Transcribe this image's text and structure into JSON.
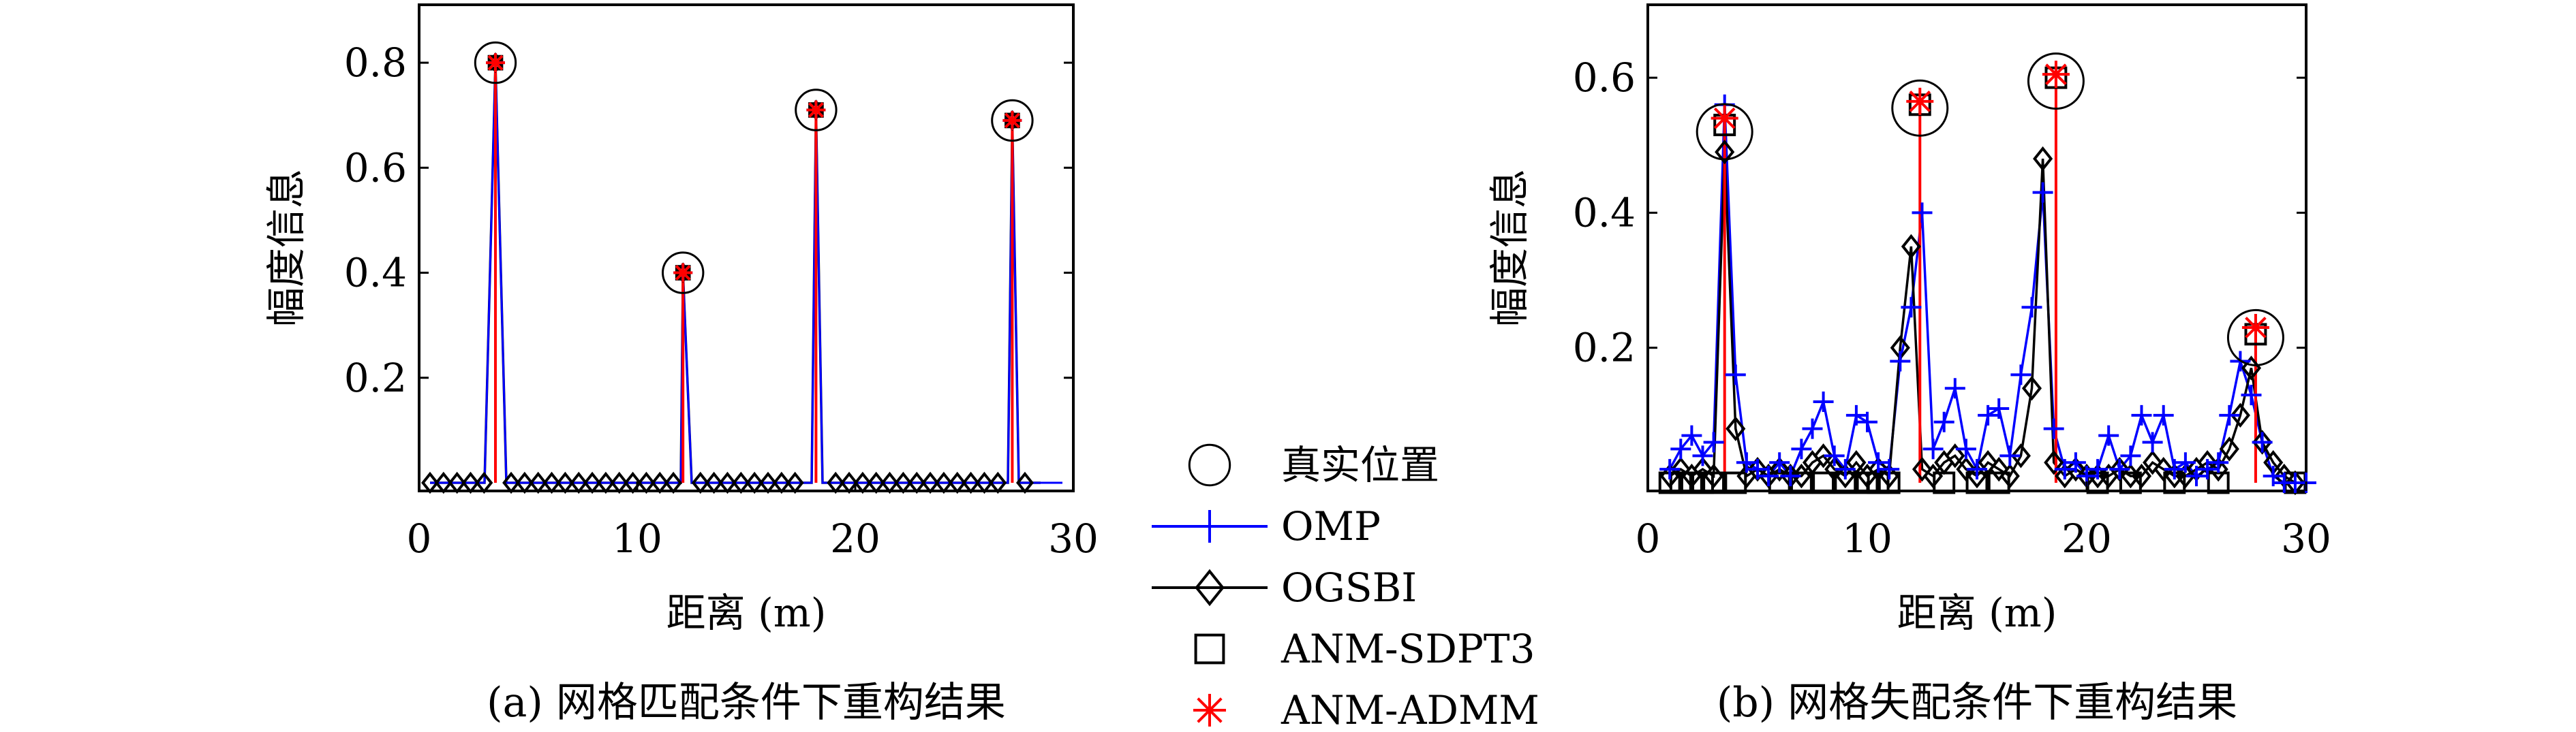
{
  "chart_data": [
    {
      "type": "line",
      "panel": "a",
      "caption": "(a) 网格匹配条件下重构结果",
      "xlabel": "距离 (m)",
      "ylabel": "幅度信息",
      "xlim": [
        0,
        30
      ],
      "ylim": [
        0,
        0.9
      ],
      "xticks": [
        0,
        10,
        20,
        30
      ],
      "yticks": [
        0.2,
        0.4,
        0.6,
        0.8
      ],
      "xtick_labels": [
        "0",
        "10",
        "20",
        "30"
      ],
      "ytick_labels": [
        "0.2",
        "0.4",
        "0.6",
        "0.8"
      ],
      "grid": false,
      "true_positions": [
        {
          "x": 3.5,
          "y": 0.8
        },
        {
          "x": 12.1,
          "y": 0.4
        },
        {
          "x": 18.2,
          "y": 0.71
        },
        {
          "x": 27.2,
          "y": 0.69
        }
      ],
      "series": [
        {
          "name": "OMP",
          "peaks": [
            {
              "x": 3.5,
              "y": 0.8
            },
            {
              "x": 12.1,
              "y": 0.4
            },
            {
              "x": 18.2,
              "y": 0.71
            },
            {
              "x": 27.2,
              "y": 0.69
            }
          ]
        },
        {
          "name": "OGSBI",
          "peaks": [
            {
              "x": 3.5,
              "y": 0.8
            },
            {
              "x": 12.1,
              "y": 0.4
            },
            {
              "x": 18.2,
              "y": 0.71
            },
            {
              "x": 27.2,
              "y": 0.69
            }
          ]
        },
        {
          "name": "ANM-SDPT3",
          "peaks": [
            {
              "x": 3.5,
              "y": 0.8
            },
            {
              "x": 12.1,
              "y": 0.4
            },
            {
              "x": 18.2,
              "y": 0.71
            },
            {
              "x": 27.2,
              "y": 0.69
            }
          ]
        },
        {
          "name": "ANM-ADMM",
          "peaks": [
            {
              "x": 3.5,
              "y": 0.8
            },
            {
              "x": 12.1,
              "y": 0.4
            },
            {
              "x": 18.2,
              "y": 0.71
            },
            {
              "x": 27.2,
              "y": 0.69
            }
          ]
        }
      ]
    },
    {
      "type": "line",
      "panel": "b",
      "caption": "(b) 网格失配条件下重构结果",
      "xlabel": "距离 (m)",
      "ylabel": "幅度信息",
      "xlim": [
        0,
        30
      ],
      "ylim": [
        0,
        0.7
      ],
      "xticks": [
        0,
        10,
        20,
        30
      ],
      "yticks": [
        0.2,
        0.4,
        0.6
      ],
      "xtick_labels": [
        "0",
        "10",
        "20",
        "30"
      ],
      "ytick_labels": [
        "0.2",
        "0.4",
        "0.6"
      ],
      "grid": false,
      "true_positions": [
        {
          "x": 3.5,
          "y": 0.52
        },
        {
          "x": 12.4,
          "y": 0.555
        },
        {
          "x": 18.6,
          "y": 0.595
        },
        {
          "x": 27.7,
          "y": 0.215
        }
      ],
      "series": [
        {
          "name": "OMP",
          "x": [
            1,
            1.5,
            2,
            2.5,
            3,
            3.5,
            4,
            4.5,
            5,
            5.5,
            6,
            6.5,
            7,
            7.5,
            8,
            8.5,
            9,
            9.5,
            10,
            10.5,
            11,
            11.5,
            12,
            12.5,
            13,
            13.5,
            14,
            14.5,
            15,
            15.5,
            16,
            16.5,
            17,
            17.5,
            18,
            18.5,
            19,
            19.5,
            20,
            20.5,
            21,
            21.5,
            22,
            22.5,
            23,
            23.5,
            24,
            24.5,
            25,
            25.5,
            26,
            26.5,
            27,
            27.5,
            28,
            28.5,
            29,
            29.5,
            30
          ],
          "y": [
            0.02,
            0.05,
            0.07,
            0.04,
            0.06,
            0.56,
            0.16,
            0.03,
            0.02,
            0.01,
            0.03,
            0.01,
            0.05,
            0.08,
            0.12,
            0.04,
            0.02,
            0.1,
            0.09,
            0.03,
            0.02,
            0.18,
            0.26,
            0.4,
            0.05,
            0.09,
            0.14,
            0.05,
            0.02,
            0.1,
            0.11,
            0.04,
            0.16,
            0.26,
            0.43,
            0.08,
            0.02,
            0.03,
            0.01,
            0.02,
            0.07,
            0.02,
            0.04,
            0.1,
            0.06,
            0.1,
            0.02,
            0.03,
            0.01,
            0.02,
            0.03,
            0.1,
            0.18,
            0.13,
            0.06,
            0.01,
            0.0,
            0.0,
            0.0
          ]
        },
        {
          "name": "OGSBI",
          "x": [
            1,
            1.5,
            2,
            2.5,
            3,
            3.5,
            4,
            4.5,
            5,
            5.5,
            6,
            6.5,
            7,
            7.5,
            8,
            8.5,
            9,
            9.5,
            10,
            10.5,
            11,
            11.5,
            12,
            12.5,
            13,
            13.5,
            14,
            14.5,
            15,
            15.5,
            16,
            16.5,
            17,
            17.5,
            18,
            18.5,
            19,
            19.5,
            20,
            20.5,
            21,
            21.5,
            22,
            22.5,
            23,
            23.5,
            24,
            24.5,
            25,
            25.5,
            26,
            26.5,
            27,
            27.5,
            28,
            28.5,
            29,
            29.5
          ],
          "y": [
            0.01,
            0.02,
            0.01,
            0.02,
            0.01,
            0.49,
            0.08,
            0.01,
            0.02,
            0.01,
            0.02,
            0.01,
            0.01,
            0.03,
            0.04,
            0.02,
            0.01,
            0.03,
            0.01,
            0.02,
            0.01,
            0.2,
            0.35,
            0.02,
            0.01,
            0.03,
            0.04,
            0.02,
            0.01,
            0.03,
            0.02,
            0.01,
            0.04,
            0.14,
            0.48,
            0.03,
            0.01,
            0.02,
            0.01,
            0.01,
            0.01,
            0.02,
            0.01,
            0.01,
            0.03,
            0.02,
            0.01,
            0.01,
            0.02,
            0.03,
            0.02,
            0.05,
            0.1,
            0.17,
            0.06,
            0.03,
            0.01,
            0.0
          ]
        },
        {
          "name": "ANM-SDPT3",
          "x": [
            1,
            1.5,
            2,
            2.5,
            3,
            3.5,
            4,
            6,
            7,
            8,
            9,
            10,
            10.5,
            11,
            12.4,
            13.5,
            15,
            16,
            18.6,
            20.5,
            22,
            24,
            26,
            27.7,
            29.5
          ],
          "y": [
            0,
            0,
            0,
            0,
            0,
            0.53,
            0,
            0,
            0,
            0,
            0,
            0,
            0,
            0,
            0.56,
            0,
            0,
            0,
            0.6,
            0,
            0,
            0,
            0,
            0.22,
            0
          ]
        },
        {
          "name": "ANM-ADMM",
          "peaks": [
            {
              "x": 3.5,
              "y": 0.54
            },
            {
              "x": 12.4,
              "y": 0.565
            },
            {
              "x": 18.6,
              "y": 0.605
            },
            {
              "x": 27.7,
              "y": 0.23
            }
          ]
        }
      ]
    }
  ],
  "legend": {
    "placement": "center",
    "entries": [
      {
        "label": "真实位置",
        "marker": "circle-icon",
        "color": "#000000"
      },
      {
        "label": "OMP",
        "marker": "plus-icon",
        "color": "#0000ff"
      },
      {
        "label": "OGSBI",
        "marker": "diamond-icon",
        "color": "#000000"
      },
      {
        "label": "ANM-SDPT3",
        "marker": "square-icon",
        "color": "#000000"
      },
      {
        "label": "ANM-ADMM",
        "marker": "asterisk-icon",
        "color": "#ff0000"
      }
    ]
  },
  "colors": {
    "omp": "#0000ff",
    "ogsbi": "#000000",
    "sdpt3": "#000000",
    "admm": "#ff0000",
    "truth": "#000000"
  }
}
